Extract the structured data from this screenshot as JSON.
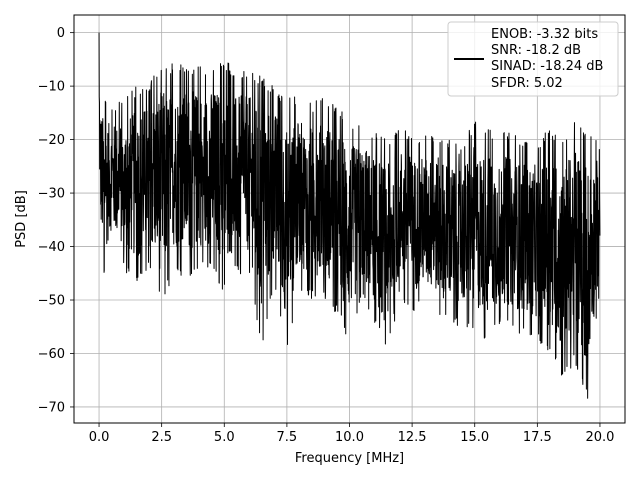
{
  "chart_data": {
    "type": "line",
    "title": "",
    "xlabel": "Frequency [MHz]",
    "ylabel": "PSD [dB]",
    "xlim": [
      -1.0,
      21.0
    ],
    "ylim": [
      -73,
      3.3
    ],
    "xticks": [
      0,
      2.5,
      5,
      7.5,
      10,
      12.5,
      15,
      17.5,
      20
    ],
    "xtick_labels": [
      "0.0",
      "2.5",
      "5.0",
      "7.5",
      "10.0",
      "12.5",
      "15.0",
      "17.5",
      "20.0"
    ],
    "yticks": [
      0,
      -10,
      -20,
      -30,
      -40,
      -50,
      -60,
      -70
    ],
    "ytick_labels": [
      "0",
      "−10",
      "−20",
      "−30",
      "−40",
      "−50",
      "−60",
      "−70"
    ],
    "grid": true,
    "legend_position": "top-right",
    "series_color": "#000000",
    "series": [
      {
        "legend_lines": [
          "ENOB: -3.32 bits",
          "SNR: -18.2 dB",
          "SINAD: -18.24 dB",
          "SFDR: 5.02"
        ],
        "x": [
          0.0,
          0.05,
          0.2,
          0.5,
          1.0,
          1.5,
          2.0,
          2.5,
          3.0,
          3.5,
          4.0,
          4.5,
          5.0,
          5.5,
          6.0,
          6.5,
          7.0,
          7.5,
          8.0,
          8.5,
          9.0,
          9.5,
          10.0,
          10.5,
          11.0,
          11.5,
          12.0,
          12.5,
          13.0,
          13.5,
          14.0,
          14.5,
          15.0,
          15.5,
          16.0,
          16.5,
          17.0,
          17.5,
          18.0,
          18.5,
          19.0,
          19.5,
          20.0
        ],
        "upper": [
          0.0,
          -10,
          -12,
          -14,
          -12,
          -10,
          -9,
          -5,
          -6,
          -6,
          -6,
          -6,
          -5,
          -7,
          -7,
          -8,
          -10,
          -12,
          -12,
          -13,
          -12,
          -13,
          -16,
          -17,
          -18,
          -20,
          -17,
          -19,
          -19,
          -19,
          -20,
          -21,
          -16,
          -18,
          -18,
          -19,
          -20,
          -20,
          -18,
          -20,
          -15,
          -18,
          -20
        ],
        "lower": [
          -25,
          -40,
          -46,
          -40,
          -45,
          -47,
          -44,
          -51,
          -45,
          -46,
          -45,
          -44,
          -49,
          -45,
          -46,
          -59,
          -47,
          -60,
          -48,
          -50,
          -50,
          -53,
          -58,
          -50,
          -55,
          -60,
          -50,
          -52,
          -52,
          -53,
          -55,
          -55,
          -57,
          -58,
          -55,
          -56,
          -57,
          -58,
          -60,
          -65,
          -62,
          -69,
          -48
        ]
      }
    ]
  }
}
